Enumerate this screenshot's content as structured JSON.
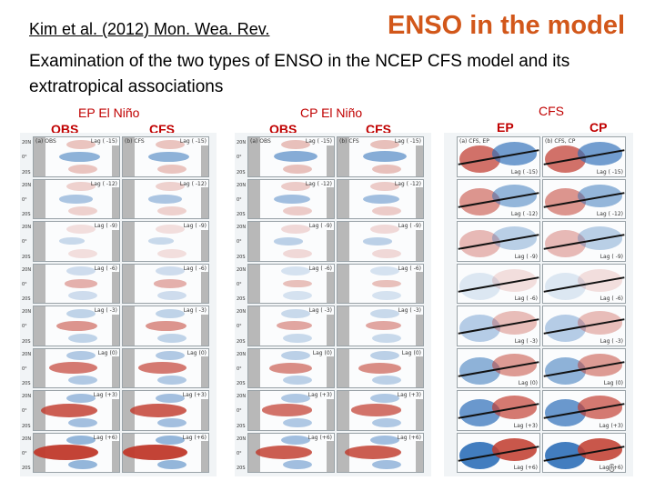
{
  "header": {
    "citation": "Kim et al. (2012) Mon. Wea. Rev.",
    "title": "ENSO in the model",
    "subtitle": "Examination of the two types of ENSO in the NCEP CFS model and its extratropical associations"
  },
  "labels": {
    "ep_el_nino": "EP El Niño",
    "cp_el_nino": "CP El Niño",
    "obs_1": "OBS",
    "cfs_1": "CFS",
    "obs_2": "OBS",
    "cfs_2": "CFS",
    "cfs_top": "CFS",
    "ep": "EP",
    "cp": "CP"
  },
  "panels": {
    "ep_obs_title": "(a) OBS",
    "ep_cfs_title": "(b) CFS",
    "cp_obs_title": "(a) OBS",
    "cp_cfs_title": "(b) CFS",
    "cfs_ep_title": "(a) CFS, EP",
    "cfs_cp_title": "(b) CFS, CP",
    "lags": [
      "Lag ( -15)",
      "Lag ( -12)",
      "Lag ( -9)",
      "Lag ( -6)",
      "Lag ( -3)",
      "Lag (0)",
      "Lag (+3)",
      "Lag (+6)"
    ],
    "lat_labels": [
      "20N",
      "0°",
      "20S"
    ]
  },
  "page_number": "6",
  "colors": {
    "title": "#d2571a",
    "warm": "#c0392b",
    "cool": "#2e6fb8",
    "land": "#b8b8b8"
  }
}
